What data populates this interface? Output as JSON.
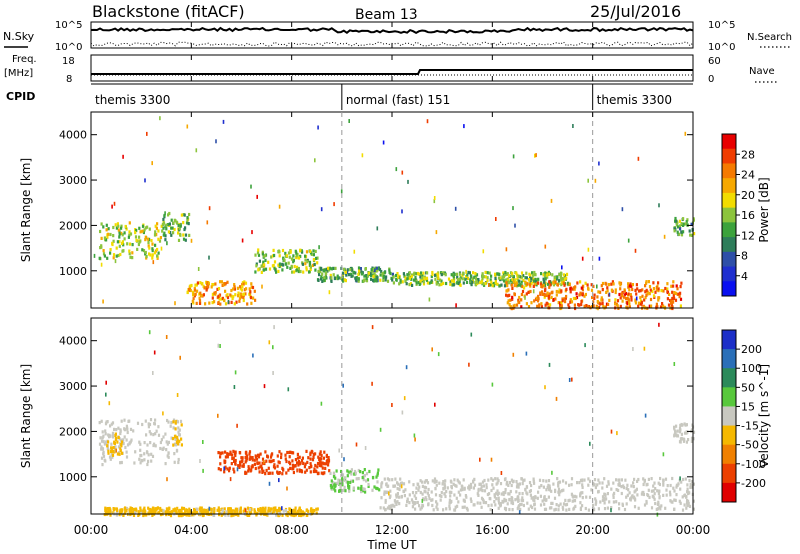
{
  "header": {
    "station": "Blackstone (fitACF)",
    "beam": "Beam 13",
    "date": "25/Jul/2016"
  },
  "left_labels": {
    "nsky": "N.Sky",
    "freq": "Freq.",
    "freq_unit": "[MHz]",
    "cpid": "CPID"
  },
  "right_labels": {
    "nsearch": "N.Search",
    "nave": "Nave"
  },
  "noise_panel": {
    "left_ticks": [
      "10^5",
      "10^0"
    ],
    "right_ticks": [
      "10^5",
      "10^0"
    ]
  },
  "freq_panel": {
    "left_ticks": [
      "18",
      "8"
    ],
    "right_ticks": [
      "60",
      "0"
    ]
  },
  "cpid_segments": [
    {
      "label": "themis 3300",
      "start_hour": 0,
      "end_hour": 10
    },
    {
      "label": "normal (fast) 151",
      "start_hour": 10,
      "end_hour": 20
    },
    {
      "label": "themis 3300",
      "start_hour": 20,
      "end_hour": 24
    }
  ],
  "power_scale": {
    "label": "Power [dB]",
    "ticks": [
      "28",
      "24",
      "20",
      "16",
      "12",
      "8",
      "4"
    ],
    "colors": [
      "#e80000",
      "#f03c00",
      "#f57a00",
      "#f6a800",
      "#f2dc00",
      "#8cc43c",
      "#3ca23c",
      "#2e7d5a",
      "#2e4fa8",
      "#1f2fcf",
      "#0a10f0"
    ]
  },
  "velocity_scale": {
    "label": "Velocity [m s^-1]",
    "ticks": [
      "200",
      "100",
      "50",
      "15",
      "-15",
      "-50",
      "-100",
      "-200"
    ],
    "colors": [
      "#1c2fc8",
      "#2a6fb8",
      "#2b8a5a",
      "#58c83c",
      "#c8c8c0",
      "#f5b800",
      "#f08000",
      "#ec4000",
      "#e00000"
    ]
  },
  "chart_data": [
    {
      "type": "heatmap",
      "name": "power",
      "ylabel": "Slant Range [km]",
      "y_ticks": [
        "1000",
        "2000",
        "3000",
        "4000"
      ],
      "ylim": [
        180,
        4500
      ],
      "xlim_hours": [
        0,
        24
      ],
      "colorbar_range": [
        0,
        30
      ],
      "features": [
        {
          "t0": 0.3,
          "t1": 2.8,
          "r0": 1300,
          "r1": 2100,
          "level": 16
        },
        {
          "t0": 2.8,
          "t1": 3.9,
          "r0": 1700,
          "r1": 2300,
          "level": 13
        },
        {
          "t0": 3.8,
          "t1": 6.5,
          "r0": 300,
          "r1": 800,
          "level": 22
        },
        {
          "t0": 6.5,
          "t1": 9.0,
          "r0": 1000,
          "r1": 1500,
          "level": 15
        },
        {
          "t0": 9.0,
          "t1": 12.0,
          "r0": 800,
          "r1": 1100,
          "level": 12
        },
        {
          "t0": 12.0,
          "t1": 19.0,
          "r0": 700,
          "r1": 1000,
          "level": 14
        },
        {
          "t0": 16.5,
          "t1": 23.5,
          "r0": 200,
          "r1": 800,
          "level": 24
        },
        {
          "t0": 23.2,
          "t1": 24.0,
          "r0": 1800,
          "r1": 2200,
          "level": 12
        }
      ]
    },
    {
      "type": "heatmap",
      "name": "velocity",
      "ylabel": "Slant Range [km]",
      "y_ticks": [
        "1000",
        "2000",
        "3000",
        "4000"
      ],
      "ylim": [
        180,
        4500
      ],
      "xlim_hours": [
        0,
        24
      ],
      "colorbar_range": [
        -200,
        200
      ],
      "features": [
        {
          "t0": 0.3,
          "t1": 3.5,
          "r0": 1300,
          "r1": 2300,
          "level": 0
        },
        {
          "t0": 0.6,
          "t1": 1.2,
          "r0": 1500,
          "r1": 2000,
          "level": -40
        },
        {
          "t0": 3.2,
          "t1": 3.6,
          "r0": 1600,
          "r1": 2300,
          "level": -40
        },
        {
          "t0": 5.0,
          "t1": 9.5,
          "r0": 1100,
          "r1": 1600,
          "level": -150
        },
        {
          "t0": 9.5,
          "t1": 11.5,
          "r0": 700,
          "r1": 1200,
          "level": 30
        },
        {
          "t0": 11.5,
          "t1": 24.0,
          "r0": 300,
          "r1": 1000,
          "level": 0
        },
        {
          "t0": 0.5,
          "t1": 9.0,
          "r0": 180,
          "r1": 350,
          "level": -40
        },
        {
          "t0": 23.2,
          "t1": 24.0,
          "r0": 1800,
          "r1": 2200,
          "level": 0
        }
      ]
    }
  ],
  "x_ticks": [
    "00:00",
    "04:00",
    "08:00",
    "12:00",
    "16:00",
    "20:00",
    "00:00"
  ],
  "x_tick_hours": [
    0,
    4,
    8,
    12,
    16,
    20,
    24
  ],
  "xlabel": "Time UT",
  "mode_change_hours": [
    10,
    20
  ]
}
